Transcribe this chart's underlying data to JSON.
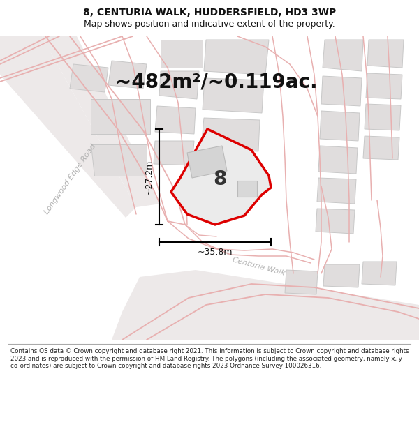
{
  "title_line1": "8, CENTURIA WALK, HUDDERSFIELD, HD3 3WP",
  "title_line2": "Map shows position and indicative extent of the property.",
  "area_text": "~482m²/~0.119ac.",
  "label_8": "8",
  "dim_height": "~27.2m",
  "dim_width": "~35.8m",
  "road_label1": "Longwood Edge Road",
  "road_label2": "Centuria Walk",
  "footer_text": "Contains OS data © Crown copyright and database right 2021. This information is subject to Crown copyright and database rights 2023 and is reproduced with the permission of HM Land Registry. The polygons (including the associated geometry, namely x, y co-ordinates) are subject to Crown copyright and database rights 2023 Ordnance Survey 100026316.",
  "map_bg": "#f5f2f2",
  "bld_fill": "#e0dddd",
  "bld_edge": "#c8c8c8",
  "road_line": "#e8b0b0",
  "plot_fill": "#ebebeb",
  "plot_stroke": "#dd0000",
  "title_fs": 10,
  "subtitle_fs": 9,
  "area_fs": 20,
  "label_fs": 20,
  "dim_fs": 9,
  "road_fs": 8,
  "footer_fs": 6.3
}
